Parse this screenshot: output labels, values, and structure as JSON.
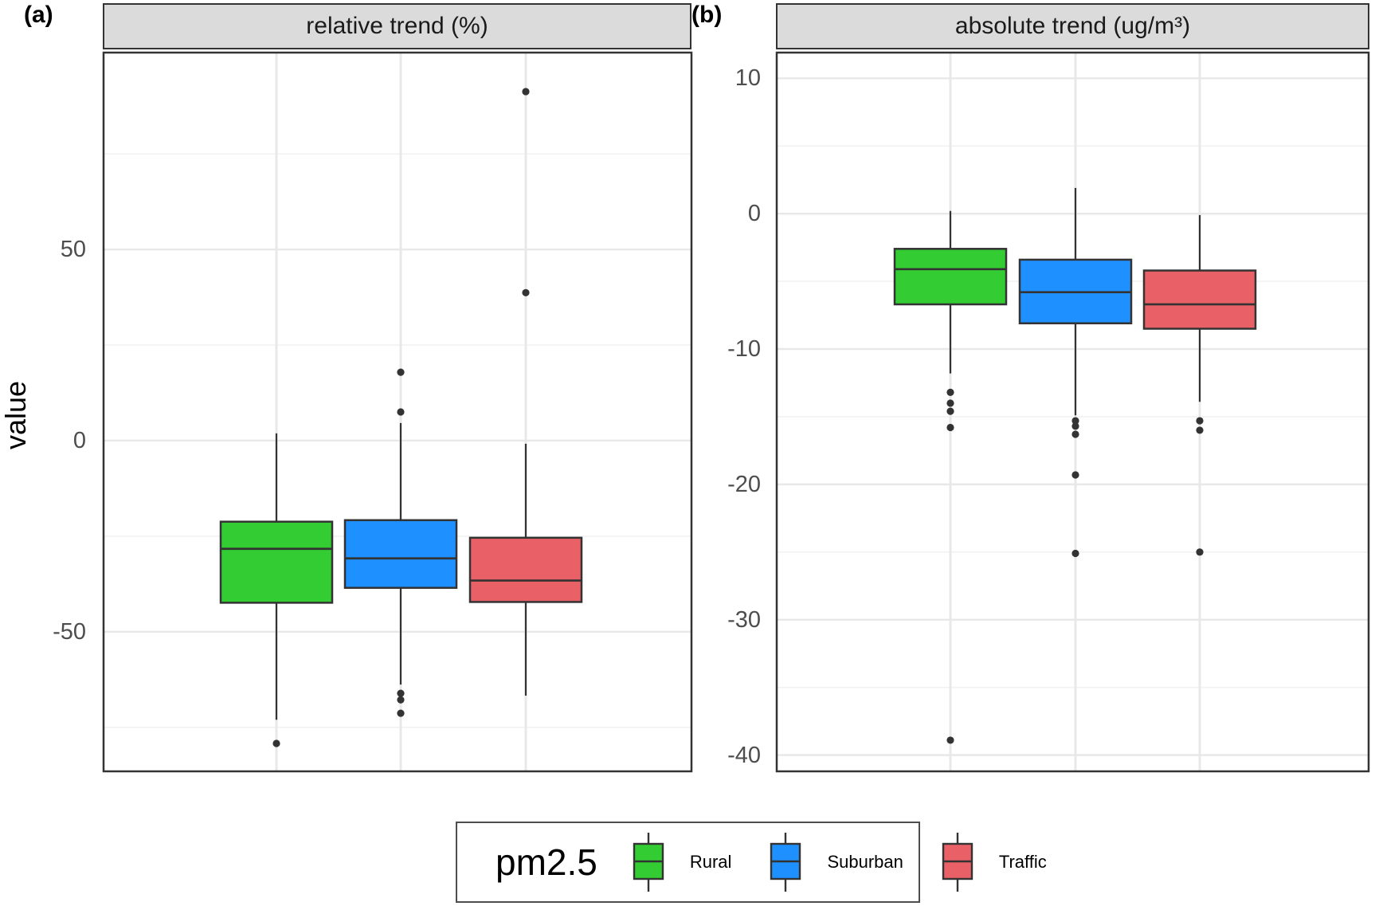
{
  "figure": {
    "facets": [
      {
        "tag": "(a)",
        "strip_title": "relative trend (%)"
      },
      {
        "tag": "(b)",
        "strip_title": "absolute trend (ug/m³)"
      }
    ],
    "y_axis_title": "value",
    "legend": {
      "title": "pm2.5",
      "items": [
        {
          "label": "Rural",
          "color": "#33CC33"
        },
        {
          "label": "Suburban",
          "color": "#1E90FF"
        },
        {
          "label": "Traffic",
          "color": "#E96066"
        }
      ]
    },
    "colors": {
      "panel_border": "#333333",
      "strip_fill": "#dbdbdb",
      "grid_major": "#e8e8e8",
      "grid_minor": "#f2f2f2",
      "outlier_dot": "#333333"
    }
  },
  "chart_data": [
    {
      "type": "boxplot",
      "facet": "relative trend (%)",
      "title": "relative trend (%)",
      "ylabel": "value",
      "categories": [
        "Rural",
        "Suburban",
        "Traffic"
      ],
      "ylim": [
        -86.5,
        101.5
      ],
      "yticks_major": [
        50,
        0,
        -50
      ],
      "yticks_minor": [
        75,
        25,
        -25,
        -75
      ],
      "grid": true,
      "series": [
        {
          "name": "Rural",
          "color": "#33CC33",
          "whisker_low": -73.0,
          "q1": -42.4,
          "median": -28.3,
          "q3": -21.2,
          "whisker_high": 1.9,
          "outliers": [
            -79.2
          ]
        },
        {
          "name": "Suburban",
          "color": "#1E90FF",
          "whisker_low": -63.8,
          "q1": -38.5,
          "median": -30.8,
          "q3": -20.8,
          "whisker_high": 4.6,
          "outliers": [
            17.9,
            7.5,
            -66.1,
            -67.8,
            -71.3
          ]
        },
        {
          "name": "Traffic",
          "color": "#E96066",
          "whisker_low": -66.7,
          "q1": -42.2,
          "median": -36.6,
          "q3": -25.4,
          "whisker_high": -0.8,
          "outliers": [
            91.3,
            38.7
          ]
        }
      ]
    },
    {
      "type": "boxplot",
      "facet": "absolute trend (ug/m³)",
      "title": "absolute trend (ug/m³)",
      "ylabel": "value",
      "categories": [
        "Rural",
        "Suburban",
        "Traffic"
      ],
      "ylim": [
        -41.2,
        11.9
      ],
      "yticks_major": [
        10,
        0,
        -10,
        -20,
        -30,
        -40
      ],
      "yticks_minor": [
        5,
        -5,
        -15,
        -25,
        -35
      ],
      "grid": true,
      "series": [
        {
          "name": "Rural",
          "color": "#33CC33",
          "whisker_low": -11.8,
          "q1": -6.7,
          "median": -4.1,
          "q3": -2.6,
          "whisker_high": 0.2,
          "outliers": [
            -13.2,
            -14.0,
            -14.6,
            -15.8,
            -38.9
          ]
        },
        {
          "name": "Suburban",
          "color": "#1E90FF",
          "whisker_low": -14.9,
          "q1": -8.1,
          "median": -5.8,
          "q3": -3.4,
          "whisker_high": 1.9,
          "outliers": [
            -15.3,
            -15.7,
            -16.3,
            -19.3,
            -25.1
          ]
        },
        {
          "name": "Traffic",
          "color": "#E96066",
          "whisker_low": -13.9,
          "q1": -8.5,
          "median": -6.7,
          "q3": -4.2,
          "whisker_high": -0.1,
          "outliers": [
            -15.3,
            -16.0,
            -25.0
          ]
        }
      ]
    }
  ]
}
